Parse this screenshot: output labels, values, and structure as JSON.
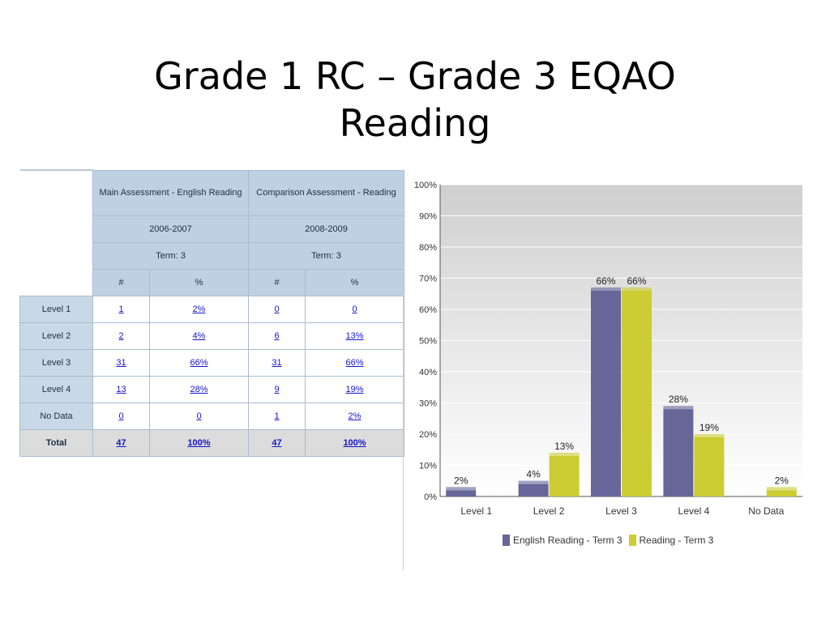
{
  "title": {
    "line1": "Grade 1 RC – Grade 3 EQAO",
    "line2": "Reading"
  },
  "table": {
    "main_header": "Main Assessment - English Reading",
    "comparison_header": "Comparison Assessment - Reading",
    "main_year": "2006-2007",
    "comparison_year": "2008-2009",
    "main_term": "Term: 3",
    "comparison_term": "Term: 3",
    "col_count": "#",
    "col_pct": "%",
    "rows": [
      {
        "label": "Level 1",
        "main_n": "1",
        "main_pct": "2%",
        "comp_n": "0",
        "comp_pct": "0"
      },
      {
        "label": "Level 2",
        "main_n": "2",
        "main_pct": "4%",
        "comp_n": "6",
        "comp_pct": "13%"
      },
      {
        "label": "Level 3",
        "main_n": "31",
        "main_pct": "66%",
        "comp_n": "31",
        "comp_pct": "66%"
      },
      {
        "label": "Level 4",
        "main_n": "13",
        "main_pct": "28%",
        "comp_n": "9",
        "comp_pct": "19%"
      },
      {
        "label": "No Data",
        "main_n": "0",
        "main_pct": "0",
        "comp_n": "1",
        "comp_pct": "2%"
      },
      {
        "label": "Total",
        "main_n": "47",
        "main_pct": "100%",
        "comp_n": "47",
        "comp_pct": "100%"
      }
    ]
  },
  "chart_data": {
    "type": "bar",
    "categories": [
      "Level 1",
      "Level 2",
      "Level 3",
      "Level 4",
      "No Data"
    ],
    "series": [
      {
        "name": "English Reading - Term 3",
        "values": [
          2,
          4,
          66,
          28,
          0
        ],
        "color": "#666699"
      },
      {
        "name": "Reading - Term 3",
        "values": [
          0,
          13,
          66,
          19,
          2
        ],
        "color": "#cccc33"
      }
    ],
    "data_labels": [
      [
        "2%",
        "4%",
        "66%",
        "28%",
        ""
      ],
      [
        "",
        "13%",
        "66%",
        "19%",
        "2%"
      ]
    ],
    "yticks": [
      "0%",
      "10%",
      "20%",
      "30%",
      "40%",
      "50%",
      "60%",
      "70%",
      "80%",
      "90%",
      "100%"
    ],
    "ylim": [
      0,
      100
    ],
    "grid": true,
    "legend_position": "bottom"
  }
}
